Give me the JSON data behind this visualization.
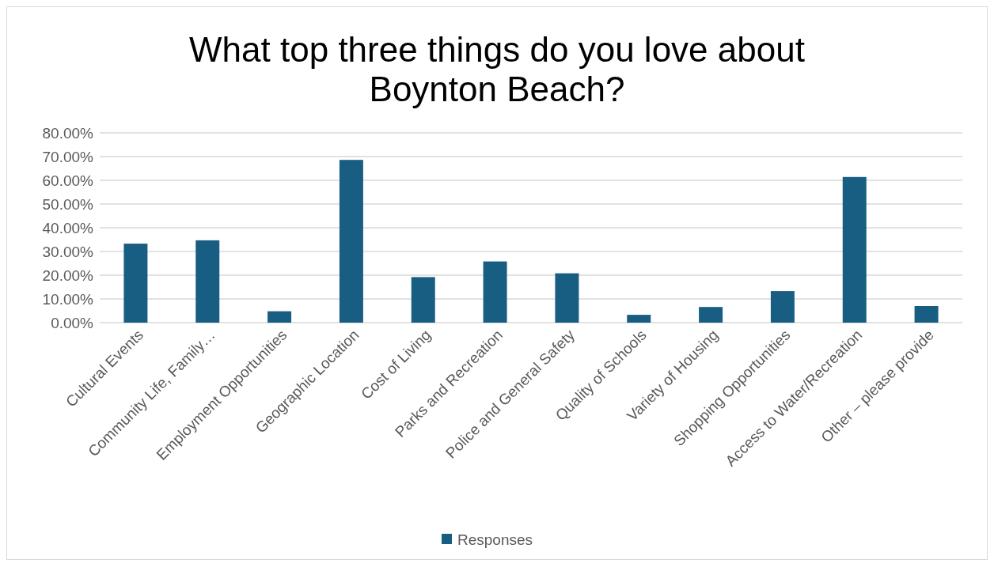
{
  "chart_data": {
    "type": "bar",
    "title": "What top three things do you love about Boynton Beach?",
    "categories": [
      "Cultural Events",
      "Community Life, Family…",
      "Employment Opportunities",
      "Geographic Location",
      "Cost of Living",
      "Parks and Recreation",
      "Police and General Safety",
      "Quality of Schools",
      "Variety of Housing",
      "Shopping Opportunities",
      "Access to Water/Recreation",
      "Other – please provide"
    ],
    "series": [
      {
        "name": "Responses",
        "color": "#175e82",
        "values": [
          33.3,
          34.7,
          4.8,
          68.6,
          19.2,
          25.8,
          20.8,
          3.3,
          6.6,
          13.3,
          61.4,
          7.0
        ]
      }
    ],
    "ylim": [
      0,
      80
    ],
    "yticks": [
      {
        "value": 0,
        "label": "0.00%"
      },
      {
        "value": 10,
        "label": "10.00%"
      },
      {
        "value": 20,
        "label": "20.00%"
      },
      {
        "value": 30,
        "label": "30.00%"
      },
      {
        "value": 40,
        "label": "40.00%"
      },
      {
        "value": 50,
        "label": "50.00%"
      },
      {
        "value": 60,
        "label": "60.00%"
      },
      {
        "value": 70,
        "label": "70.00%"
      },
      {
        "value": 80,
        "label": "80.00%"
      }
    ],
    "grid": "y",
    "legend": "bottom"
  }
}
